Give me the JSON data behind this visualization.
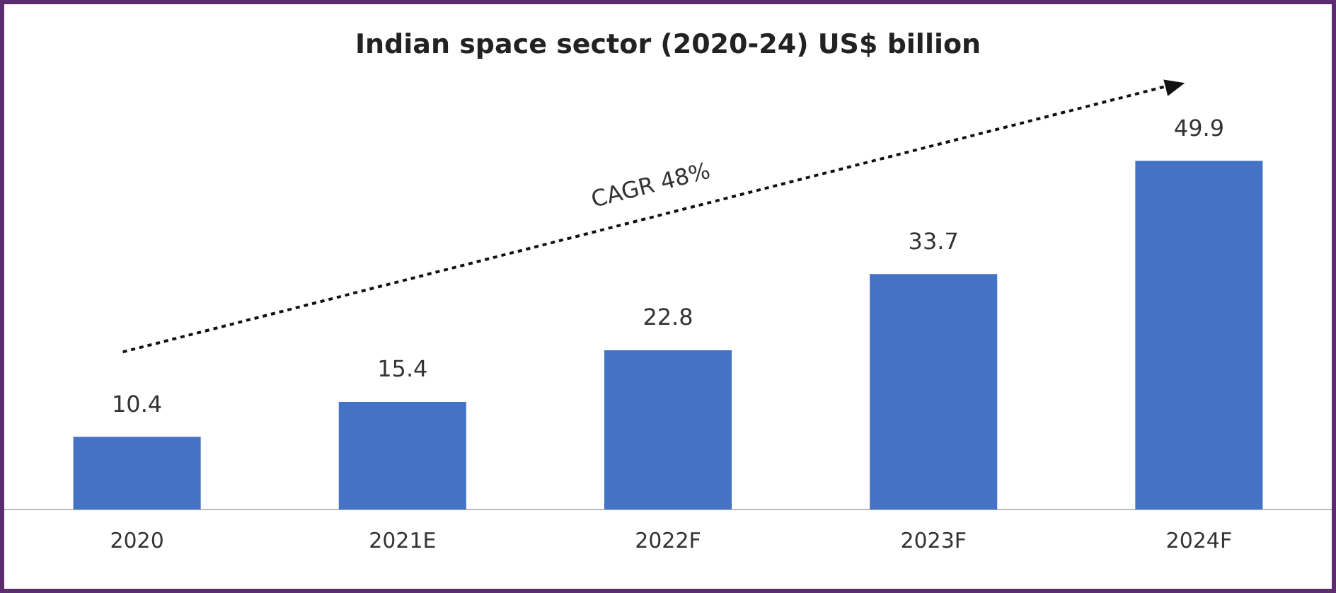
{
  "chart_data": {
    "type": "bar",
    "title": "Indian space sector (2020-24) US$ billion",
    "categories": [
      "2020",
      "2021E",
      "2022F",
      "2023F",
      "2024F"
    ],
    "values": [
      10.4,
      15.4,
      22.8,
      33.7,
      49.9
    ],
    "color": "#4472c4",
    "data_labels": true,
    "grid": false,
    "legend": false,
    "annotations": [
      "CAGR 48%"
    ]
  }
}
